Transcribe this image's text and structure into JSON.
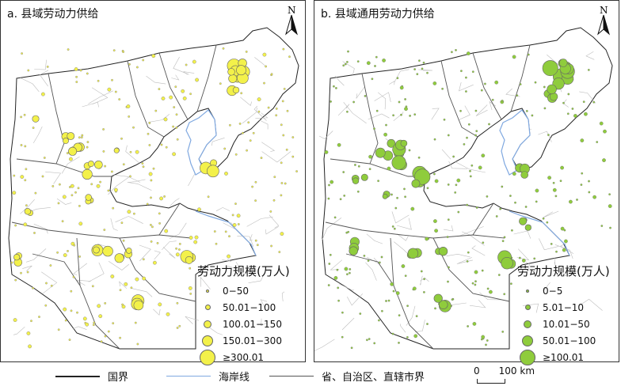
{
  "panel_a": {
    "title": "a. 县域劳动力供给",
    "north_label": "N",
    "legend_title": "劳动力规模(万人)",
    "legend": [
      "0−50",
      "50.01−100",
      "100.01−150",
      "150.01−300",
      "≥300.01"
    ],
    "symbol_color": "#f3f14a"
  },
  "panel_b": {
    "title": "b. 县域通用劳动力供给",
    "north_label": "N",
    "legend_title": "劳动力规模(万人)",
    "legend": [
      "0−5",
      "5.01−10",
      "10.01−50",
      "50.01−100",
      "≥100.01"
    ],
    "symbol_color": "#8fcc3c"
  },
  "bottom_legend": {
    "national_border": "国界",
    "coastline": "海岸线",
    "provincial_border": "省、自治区、直辖市界"
  },
  "scale_bar": {
    "zero": "0",
    "value": "100",
    "unit": "km"
  },
  "colors": {
    "coastline": "#7fa8e0",
    "county_border": "#bdbdbd",
    "province_border": "#555555",
    "national_border": "#222222"
  }
}
